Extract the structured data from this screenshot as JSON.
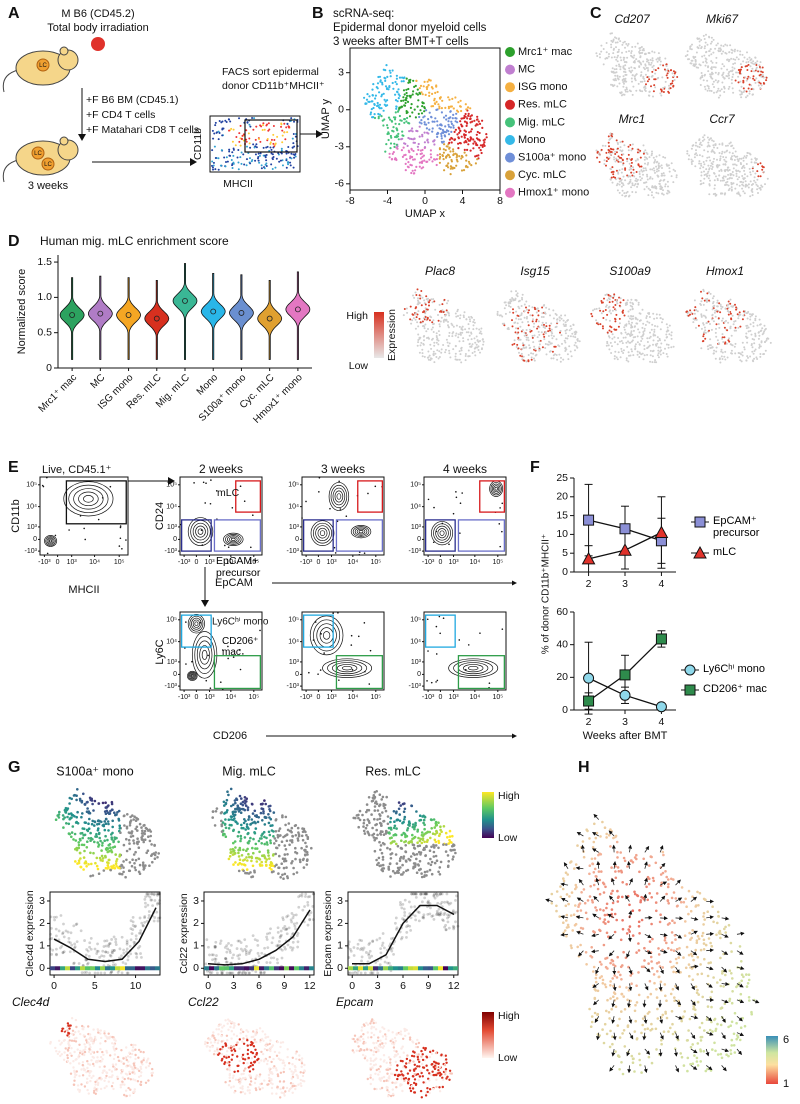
{
  "panels": {
    "A": {
      "letter": "A",
      "lines": [
        "M B6 (CD45.2)",
        "Total body irradiation"
      ],
      "mouse_label": "LC",
      "additions": [
        "+F B6 BM (CD45.1)",
        "+F CD4 T cells",
        "+F Matahari CD8 T cells"
      ],
      "duration": "3 weeks",
      "sort": [
        "FACS sort epidermal",
        "donor CD11b⁺MHCII⁺"
      ],
      "y_axis": "CD11b",
      "x_axis": "MHCII"
    },
    "B": {
      "letter": "B",
      "title": [
        "scRNA-seq:",
        "Epidermal donor myeloid cells",
        "3 weeks after BMT+T cells"
      ],
      "x_label": "UMAP x",
      "y_label": "UMAP y",
      "xlim": [
        -8,
        8
      ],
      "ylim": [
        -6.5,
        5
      ],
      "xticks": [
        -8,
        -4,
        0,
        4,
        8
      ],
      "yticks": [
        -6,
        -3,
        0,
        3
      ],
      "legend": [
        {
          "name": "Mrc1⁺ mac",
          "color": "#2ca02c"
        },
        {
          "name": "MC",
          "color": "#c07fd0"
        },
        {
          "name": "ISG mono",
          "color": "#f5b041"
        },
        {
          "name": "Res. mLC",
          "color": "#d62728"
        },
        {
          "name": "Mig. mLC",
          "color": "#45c27a"
        },
        {
          "name": "Mono",
          "color": "#35b9e8"
        },
        {
          "name": "S100a⁺ mono",
          "color": "#6f8fd8"
        },
        {
          "name": "Cyc. mLC",
          "color": "#d9a23a"
        },
        {
          "name": "Hmox1⁺ mono",
          "color": "#e377c2"
        }
      ]
    },
    "C": {
      "letter": "C",
      "genes": [
        "Cd207",
        "Mki67",
        "Mrc1",
        "Ccr7"
      ],
      "genes_lower": [
        "Plac8",
        "Isg15",
        "S100a9",
        "Hmox1"
      ],
      "scale": {
        "high": "High",
        "low": "Low",
        "title": "Expression"
      }
    },
    "D": {
      "letter": "D"
    },
    "E": {
      "letter": "E",
      "gate_title": "Live, CD45.1⁺",
      "timepoints": [
        "2 weeks",
        "3 weeks",
        "4 weeks"
      ],
      "axes": {
        "cd11b": "CD11b",
        "mhcii": "MHCII",
        "cd24": "CD24",
        "epcam": "EpCAM",
        "ly6c": "Ly6C",
        "cd206": "CD206"
      },
      "gates": {
        "mlc": "mLC",
        "precursor": "EpCAM+ precursor",
        "mono": "Ly6Cʰⁱ mono",
        "mac": "CD206⁺ mac"
      },
      "tick_labels": [
        "-10³",
        "0",
        "10³",
        "10⁴",
        "10⁵"
      ]
    },
    "F": {
      "letter": "F",
      "y_label": "% of donor CD11b⁺MHCII⁺"
    },
    "G": {
      "letter": "G",
      "plots": [
        {
          "title": "S100a⁺ mono",
          "y_label": "Clec4d expression",
          "gene": "Clec4d",
          "xlim": [
            -0.5,
            13
          ],
          "xticks": [
            0,
            5,
            10
          ],
          "ylim": [
            -0.3,
            3.4
          ],
          "yticks": [
            0,
            1,
            2,
            3
          ]
        },
        {
          "title": "Mig. mLC",
          "y_label": "Ccl22 expression",
          "gene": "Ccl22",
          "xlim": [
            -0.5,
            12.5
          ],
          "xticks": [
            0,
            3,
            6,
            9,
            12
          ],
          "ylim": [
            -0.3,
            3.4
          ],
          "yticks": [
            0,
            1,
            2,
            3
          ]
        },
        {
          "title": "Res. mLC",
          "y_label": "Epcam expression",
          "gene": "Epcam",
          "xlim": [
            -0.5,
            12.5
          ],
          "xticks": [
            0,
            3,
            6,
            9,
            12
          ],
          "ylim": [
            -0.3,
            3.4
          ],
          "yticks": [
            0,
            1,
            2,
            3
          ]
        }
      ],
      "scale": {
        "high": "High",
        "low": "Low"
      },
      "scale_lower": {
        "high": "High",
        "low": "Low"
      }
    },
    "H": {
      "letter": "H",
      "scale": {
        "max": 6,
        "min": 1
      }
    }
  },
  "chart_data": [
    {
      "type": "violin",
      "title": "Human mig. mLC enrichment score",
      "y_label": "Normalized score",
      "categories": [
        "Mrc1⁺ mac",
        "MC",
        "ISG mono",
        "Res. mLC",
        "Mig. mLC",
        "Mono",
        "S100a⁺ mono",
        "Cyc. mLC",
        "Hmox1⁺ mono"
      ],
      "values": [
        0.75,
        0.77,
        0.75,
        0.7,
        0.95,
        0.8,
        0.78,
        0.7,
        0.83
      ],
      "colors": [
        "#2ca25f",
        "#b07cc6",
        "#f5a623",
        "#d7301f",
        "#3ab795",
        "#29b6e8",
        "#6a8fd0",
        "#e0a030",
        "#e377c2"
      ],
      "ylim": [
        0,
        1.6
      ],
      "yticks": [
        0,
        0.5,
        {
          "value": 1,
          "label": "1.0"
        },
        1.5
      ]
    },
    {
      "type": "line",
      "x": [
        2,
        3,
        4
      ],
      "xlim": [
        1.6,
        4.4
      ],
      "xticks": [
        2,
        3,
        4
      ],
      "ylim": [
        0,
        25
      ],
      "yticks": [
        0,
        5,
        10,
        15,
        20,
        25
      ],
      "series": [
        {
          "name": "EpCAM⁺ precursor",
          "color": "#8b8fd6",
          "marker": "square",
          "values": [
            13.8,
            11.5,
            8.3
          ],
          "errors": [
            9.5,
            6,
            6
          ]
        },
        {
          "name": "mLC",
          "color": "#e0322b",
          "marker": "triangle",
          "values": [
            3.5,
            5.8,
            10.5
          ],
          "errors": [
            3.5,
            5,
            9.5
          ]
        }
      ]
    },
    {
      "type": "line",
      "x": [
        2,
        3,
        4
      ],
      "xlim": [
        1.6,
        4.4
      ],
      "xticks": [
        2,
        3,
        4
      ],
      "ylim": [
        0,
        60
      ],
      "yticks": [
        0,
        20,
        40,
        60
      ],
      "x_label": "Weeks after BMT",
      "series": [
        {
          "name": "Ly6Cʰⁱ mono",
          "color": "#8fd8ea",
          "marker": "circle",
          "values": [
            19.5,
            9,
            2
          ],
          "errors": [
            22,
            5,
            1
          ]
        },
        {
          "name": "CD206⁺ mac",
          "color": "#2e8b4c",
          "marker": "square",
          "values": [
            5.5,
            21.5,
            43.5
          ],
          "errors": [
            5,
            12,
            5
          ]
        }
      ]
    }
  ]
}
